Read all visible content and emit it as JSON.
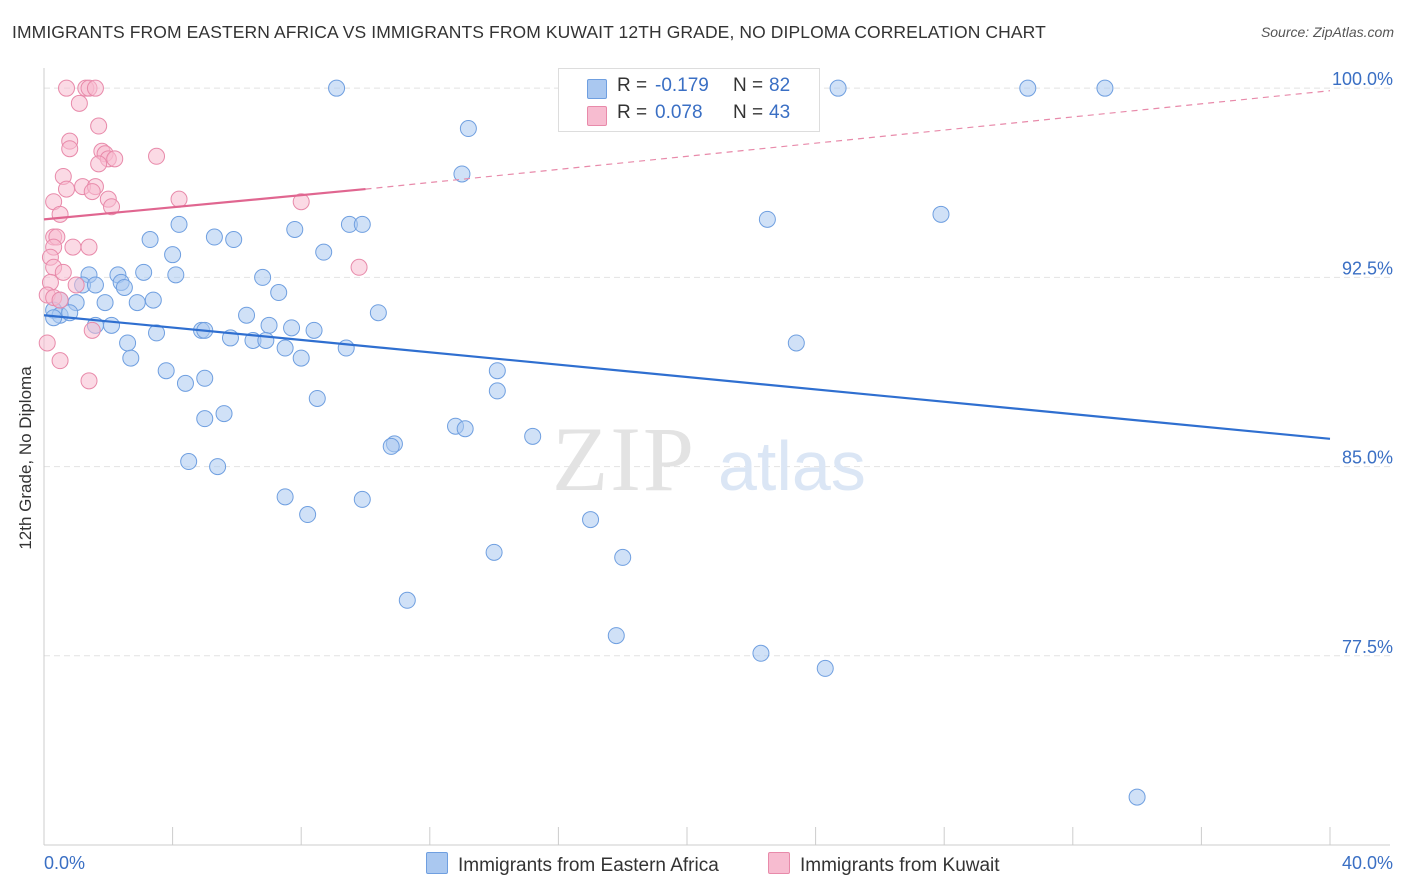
{
  "title": "IMMIGRANTS FROM EASTERN AFRICA VS IMMIGRANTS FROM KUWAIT 12TH GRADE, NO DIPLOMA CORRELATION CHART",
  "source": "Source: ZipAtlas.com",
  "watermark": {
    "zip": "ZIP",
    "atlas": "atlas"
  },
  "legend_top": {
    "rows": [
      {
        "r_label": "R =",
        "r_value": "-0.179",
        "n_label": "N =",
        "n_value": "82",
        "color": "#aac8f0",
        "edge": "#6f9fe0"
      },
      {
        "r_label": "R =",
        "r_value": "0.078",
        "n_label": "N =",
        "n_value": "43",
        "color": "#f7bcd0",
        "edge": "#e88aaa"
      }
    ]
  },
  "legend_bottom": [
    {
      "label": "Immigrants from Eastern Africa",
      "color": "#aac8f0",
      "edge": "#6f9fe0"
    },
    {
      "label": "Immigrants from Kuwait",
      "color": "#f7bcd0",
      "edge": "#e88aaa"
    }
  ],
  "chart_data": {
    "type": "scatter",
    "title": "IMMIGRANTS FROM EASTERN AFRICA VS IMMIGRANTS FROM KUWAIT 12TH GRADE, NO DIPLOMA CORRELATION CHART",
    "xlabel": "",
    "ylabel": "12th Grade, No Diploma",
    "xlim": [
      0,
      40
    ],
    "ylim": [
      70.0,
      100.8
    ],
    "x_tick_labels": [
      "0.0%",
      "40.0%"
    ],
    "y_ticks": [
      77.5,
      85.0,
      92.5,
      100.0
    ],
    "y_tick_labels": [
      "77.5%",
      "85.0%",
      "92.5%",
      "100.0%"
    ],
    "grid": true,
    "grid_style": "dashed",
    "series": [
      {
        "name": "Immigrants from Eastern Africa",
        "color": "#6f9fe0",
        "fill": "#aac8f0",
        "trend": {
          "x": [
            0,
            40
          ],
          "y": [
            91.0,
            86.1
          ],
          "dashed_beyond": null
        },
        "points": [
          [
            9.1,
            100.0
          ],
          [
            17.5,
            100.0
          ],
          [
            24.7,
            100.0
          ],
          [
            30.6,
            100.0
          ],
          [
            33.0,
            100.0
          ],
          [
            13.2,
            98.4
          ],
          [
            13.0,
            96.6
          ],
          [
            22.5,
            94.8
          ],
          [
            27.9,
            95.0
          ],
          [
            4.2,
            94.6
          ],
          [
            7.8,
            94.4
          ],
          [
            9.5,
            94.6
          ],
          [
            9.9,
            94.6
          ],
          [
            3.3,
            94.0
          ],
          [
            5.3,
            94.1
          ],
          [
            5.9,
            94.0
          ],
          [
            8.7,
            93.5
          ],
          [
            4.0,
            93.4
          ],
          [
            1.4,
            92.6
          ],
          [
            2.3,
            92.6
          ],
          [
            3.1,
            92.7
          ],
          [
            4.1,
            92.6
          ],
          [
            6.8,
            92.5
          ],
          [
            1.2,
            92.2
          ],
          [
            1.6,
            92.2
          ],
          [
            2.4,
            92.3
          ],
          [
            2.5,
            92.1
          ],
          [
            7.3,
            91.9
          ],
          [
            0.5,
            91.6
          ],
          [
            1.0,
            91.5
          ],
          [
            1.9,
            91.5
          ],
          [
            2.9,
            91.5
          ],
          [
            3.4,
            91.6
          ],
          [
            0.3,
            91.2
          ],
          [
            0.5,
            91.0
          ],
          [
            0.8,
            91.1
          ],
          [
            6.3,
            91.0
          ],
          [
            10.4,
            91.1
          ],
          [
            1.6,
            90.6
          ],
          [
            2.1,
            90.6
          ],
          [
            7.0,
            90.6
          ],
          [
            7.7,
            90.5
          ],
          [
            4.9,
            90.4
          ],
          [
            5.0,
            90.4
          ],
          [
            8.4,
            90.4
          ],
          [
            3.5,
            90.3
          ],
          [
            5.8,
            90.1
          ],
          [
            6.5,
            90.0
          ],
          [
            6.9,
            90.0
          ],
          [
            2.6,
            89.9
          ],
          [
            7.5,
            89.7
          ],
          [
            9.4,
            89.7
          ],
          [
            23.4,
            89.9
          ],
          [
            2.7,
            89.3
          ],
          [
            8.0,
            89.3
          ],
          [
            3.8,
            88.8
          ],
          [
            14.1,
            88.8
          ],
          [
            5.0,
            88.5
          ],
          [
            4.4,
            88.3
          ],
          [
            14.1,
            88.0
          ],
          [
            8.5,
            87.7
          ],
          [
            5.6,
            87.1
          ],
          [
            5.0,
            86.9
          ],
          [
            12.8,
            86.6
          ],
          [
            13.1,
            86.5
          ],
          [
            15.2,
            86.2
          ],
          [
            10.9,
            85.9
          ],
          [
            10.8,
            85.8
          ],
          [
            4.5,
            85.2
          ],
          [
            5.4,
            85.0
          ],
          [
            7.5,
            83.8
          ],
          [
            9.9,
            83.7
          ],
          [
            8.2,
            83.1
          ],
          [
            17.0,
            82.9
          ],
          [
            14.0,
            81.6
          ],
          [
            18.0,
            81.4
          ],
          [
            11.3,
            79.7
          ],
          [
            17.8,
            78.3
          ],
          [
            22.3,
            77.6
          ],
          [
            24.3,
            77.0
          ],
          [
            0.3,
            90.9
          ],
          [
            34.0,
            71.9
          ]
        ]
      },
      {
        "name": "Immigrants from Kuwait",
        "color": "#e88aaa",
        "fill": "#f7bcd0",
        "trend": {
          "x": [
            0,
            10
          ],
          "y": [
            94.8,
            96.0
          ],
          "dashed_to": [
            40,
            99.9
          ]
        },
        "points": [
          [
            0.7,
            100.0
          ],
          [
            1.3,
            100.0
          ],
          [
            1.4,
            100.0
          ],
          [
            1.6,
            100.0
          ],
          [
            1.1,
            99.4
          ],
          [
            1.7,
            98.5
          ],
          [
            0.8,
            97.9
          ],
          [
            0.8,
            97.6
          ],
          [
            1.8,
            97.5
          ],
          [
            1.9,
            97.4
          ],
          [
            2.0,
            97.2
          ],
          [
            2.2,
            97.2
          ],
          [
            3.5,
            97.3
          ],
          [
            1.7,
            97.0
          ],
          [
            0.6,
            96.5
          ],
          [
            0.7,
            96.0
          ],
          [
            1.2,
            96.1
          ],
          [
            1.6,
            96.1
          ],
          [
            1.5,
            95.9
          ],
          [
            2.0,
            95.6
          ],
          [
            2.1,
            95.3
          ],
          [
            4.2,
            95.6
          ],
          [
            8.0,
            95.5
          ],
          [
            0.3,
            95.5
          ],
          [
            0.5,
            95.0
          ],
          [
            0.3,
            94.1
          ],
          [
            0.4,
            94.1
          ],
          [
            0.3,
            93.7
          ],
          [
            0.9,
            93.7
          ],
          [
            1.4,
            93.7
          ],
          [
            0.2,
            93.3
          ],
          [
            0.3,
            92.9
          ],
          [
            0.6,
            92.7
          ],
          [
            0.2,
            92.3
          ],
          [
            1.0,
            92.2
          ],
          [
            0.1,
            91.8
          ],
          [
            0.3,
            91.7
          ],
          [
            0.5,
            91.6
          ],
          [
            9.8,
            92.9
          ],
          [
            1.5,
            90.4
          ],
          [
            0.1,
            89.9
          ],
          [
            0.5,
            89.2
          ],
          [
            1.4,
            88.4
          ]
        ]
      }
    ]
  }
}
